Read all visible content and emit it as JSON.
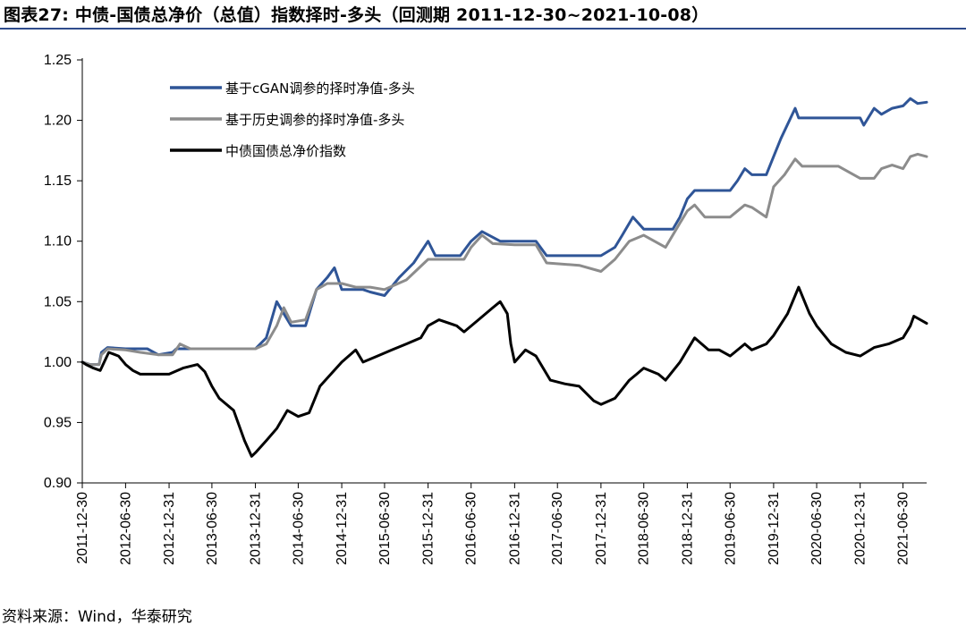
{
  "title": "图表27:  中债-国债总净价（总值）指数择时-多头（回测期 2011-12-30~2021-10-08）",
  "source": "资料来源：Wind，华泰研究",
  "chart_data": {
    "type": "line",
    "title": "图表27:  中债-国债总净价（总值）指数择时-多头（回测期 2011-12-30~2021-10-08）",
    "xlabel": "",
    "ylabel": "",
    "ylim": [
      0.9,
      1.25
    ],
    "yticks": [
      0.9,
      0.95,
      1.0,
      1.05,
      1.1,
      1.15,
      1.2,
      1.25
    ],
    "ytick_labels": [
      "0.90",
      "0.95",
      "1.00",
      "1.05",
      "1.10",
      "1.15",
      "1.20",
      "1.25"
    ],
    "xlim": [
      "2011-12-30",
      "2021-10-08"
    ],
    "xtick_labels": [
      "2011-12-30",
      "2012-06-30",
      "2012-12-31",
      "2013-06-30",
      "2013-12-31",
      "2014-06-30",
      "2014-12-31",
      "2015-06-30",
      "2015-12-31",
      "2016-06-30",
      "2016-12-31",
      "2017-06-30",
      "2017-12-31",
      "2018-06-30",
      "2018-12-31",
      "2019-06-30",
      "2019-12-31",
      "2020-06-30",
      "2020-12-31",
      "2021-06-30"
    ],
    "grid": false,
    "legend_position": "top-left",
    "series": [
      {
        "name": "基于cGAN调参的择时净值-多头",
        "color": "#2f5597",
        "points": [
          [
            "2011-12-30",
            1.0
          ],
          [
            "2012-01-31",
            0.998
          ],
          [
            "2012-03-10",
            0.998
          ],
          [
            "2012-03-20",
            1.008
          ],
          [
            "2012-04-15",
            1.012
          ],
          [
            "2012-06-30",
            1.011
          ],
          [
            "2012-09-30",
            1.011
          ],
          [
            "2012-11-15",
            1.006
          ],
          [
            "2013-01-15",
            1.008
          ],
          [
            "2013-01-31",
            1.011
          ],
          [
            "2013-06-30",
            1.011
          ],
          [
            "2013-12-31",
            1.011
          ],
          [
            "2014-02-15",
            1.02
          ],
          [
            "2014-03-31",
            1.05
          ],
          [
            "2014-04-30",
            1.04
          ],
          [
            "2014-05-31",
            1.03
          ],
          [
            "2014-07-31",
            1.03
          ],
          [
            "2014-09-15",
            1.06
          ],
          [
            "2014-10-31",
            1.07
          ],
          [
            "2014-11-30",
            1.078
          ],
          [
            "2014-12-31",
            1.06
          ],
          [
            "2015-03-31",
            1.06
          ],
          [
            "2015-04-30",
            1.058
          ],
          [
            "2015-06-30",
            1.055
          ],
          [
            "2015-08-31",
            1.07
          ],
          [
            "2015-10-31",
            1.082
          ],
          [
            "2015-12-31",
            1.1
          ],
          [
            "2016-01-31",
            1.088
          ],
          [
            "2016-03-31",
            1.088
          ],
          [
            "2016-05-15",
            1.088
          ],
          [
            "2016-06-30",
            1.1
          ],
          [
            "2016-08-15",
            1.108
          ],
          [
            "2016-10-31",
            1.1
          ],
          [
            "2016-12-31",
            1.1
          ],
          [
            "2017-03-31",
            1.1
          ],
          [
            "2017-05-15",
            1.088
          ],
          [
            "2017-12-31",
            1.088
          ],
          [
            "2018-02-28",
            1.095
          ],
          [
            "2018-03-31",
            1.105
          ],
          [
            "2018-05-15",
            1.12
          ],
          [
            "2018-06-30",
            1.11
          ],
          [
            "2018-10-31",
            1.11
          ],
          [
            "2018-11-30",
            1.12
          ],
          [
            "2018-12-31",
            1.135
          ],
          [
            "2019-01-31",
            1.142
          ],
          [
            "2019-06-30",
            1.142
          ],
          [
            "2019-07-31",
            1.15
          ],
          [
            "2019-08-31",
            1.16
          ],
          [
            "2019-09-30",
            1.155
          ],
          [
            "2019-11-30",
            1.155
          ],
          [
            "2019-12-31",
            1.17
          ],
          [
            "2020-01-31",
            1.185
          ],
          [
            "2020-03-31",
            1.21
          ],
          [
            "2020-04-15",
            1.202
          ],
          [
            "2020-06-30",
            1.202
          ],
          [
            "2020-12-31",
            1.202
          ],
          [
            "2021-01-15",
            1.196
          ],
          [
            "2021-02-28",
            1.21
          ],
          [
            "2021-03-31",
            1.205
          ],
          [
            "2021-05-15",
            1.21
          ],
          [
            "2021-06-30",
            1.212
          ],
          [
            "2021-07-31",
            1.218
          ],
          [
            "2021-08-31",
            1.214
          ],
          [
            "2021-10-08",
            1.215
          ]
        ]
      },
      {
        "name": "基于历史调参的择时净值-多头",
        "color": "#8c8c8c",
        "points": [
          [
            "2011-12-30",
            1.0
          ],
          [
            "2012-01-31",
            0.998
          ],
          [
            "2012-03-10",
            0.998
          ],
          [
            "2012-03-20",
            1.006
          ],
          [
            "2012-04-15",
            1.011
          ],
          [
            "2012-06-30",
            1.01
          ],
          [
            "2012-08-31",
            1.008
          ],
          [
            "2012-11-15",
            1.006
          ],
          [
            "2013-01-15",
            1.006
          ],
          [
            "2013-02-15",
            1.015
          ],
          [
            "2013-03-31",
            1.011
          ],
          [
            "2013-06-30",
            1.011
          ],
          [
            "2013-12-31",
            1.011
          ],
          [
            "2014-02-15",
            1.015
          ],
          [
            "2014-03-31",
            1.03
          ],
          [
            "2014-04-30",
            1.045
          ],
          [
            "2014-05-31",
            1.033
          ],
          [
            "2014-07-31",
            1.035
          ],
          [
            "2014-09-15",
            1.06
          ],
          [
            "2014-10-31",
            1.065
          ],
          [
            "2014-12-31",
            1.065
          ],
          [
            "2015-02-28",
            1.062
          ],
          [
            "2015-04-30",
            1.062
          ],
          [
            "2015-06-30",
            1.06
          ],
          [
            "2015-09-30",
            1.068
          ],
          [
            "2015-12-31",
            1.085
          ],
          [
            "2016-03-31",
            1.085
          ],
          [
            "2016-05-31",
            1.085
          ],
          [
            "2016-06-30",
            1.095
          ],
          [
            "2016-08-15",
            1.105
          ],
          [
            "2016-09-30",
            1.098
          ],
          [
            "2016-12-31",
            1.097
          ],
          [
            "2017-03-31",
            1.097
          ],
          [
            "2017-05-15",
            1.082
          ],
          [
            "2017-09-30",
            1.08
          ],
          [
            "2017-12-31",
            1.075
          ],
          [
            "2018-02-28",
            1.085
          ],
          [
            "2018-04-30",
            1.1
          ],
          [
            "2018-06-30",
            1.105
          ],
          [
            "2018-09-30",
            1.095
          ],
          [
            "2018-11-30",
            1.115
          ],
          [
            "2018-12-31",
            1.125
          ],
          [
            "2019-01-31",
            1.13
          ],
          [
            "2019-03-15",
            1.12
          ],
          [
            "2019-06-30",
            1.12
          ],
          [
            "2019-08-31",
            1.13
          ],
          [
            "2019-09-30",
            1.128
          ],
          [
            "2019-11-30",
            1.12
          ],
          [
            "2019-12-31",
            1.145
          ],
          [
            "2020-02-15",
            1.155
          ],
          [
            "2020-03-31",
            1.168
          ],
          [
            "2020-04-30",
            1.162
          ],
          [
            "2020-06-30",
            1.162
          ],
          [
            "2020-09-30",
            1.162
          ],
          [
            "2020-12-31",
            1.152
          ],
          [
            "2021-02-28",
            1.152
          ],
          [
            "2021-03-31",
            1.16
          ],
          [
            "2021-05-15",
            1.163
          ],
          [
            "2021-06-30",
            1.16
          ],
          [
            "2021-07-31",
            1.17
          ],
          [
            "2021-08-31",
            1.172
          ],
          [
            "2021-10-08",
            1.17
          ]
        ]
      },
      {
        "name": "中债国债总净价指数",
        "color": "#000000",
        "points": [
          [
            "2011-12-30",
            1.0
          ],
          [
            "2012-01-15",
            0.998
          ],
          [
            "2012-02-15",
            0.995
          ],
          [
            "2012-03-15",
            0.993
          ],
          [
            "2012-04-20",
            1.008
          ],
          [
            "2012-05-31",
            1.005
          ],
          [
            "2012-06-30",
            0.998
          ],
          [
            "2012-07-31",
            0.993
          ],
          [
            "2012-08-31",
            0.99
          ],
          [
            "2012-10-31",
            0.99
          ],
          [
            "2012-12-31",
            0.99
          ],
          [
            "2013-02-28",
            0.995
          ],
          [
            "2013-04-30",
            0.998
          ],
          [
            "2013-05-31",
            0.992
          ],
          [
            "2013-06-30",
            0.98
          ],
          [
            "2013-07-31",
            0.97
          ],
          [
            "2013-09-30",
            0.96
          ],
          [
            "2013-11-15",
            0.935
          ],
          [
            "2013-12-15",
            0.922
          ],
          [
            "2013-12-31",
            0.925
          ],
          [
            "2014-02-15",
            0.935
          ],
          [
            "2014-03-31",
            0.945
          ],
          [
            "2014-05-15",
            0.96
          ],
          [
            "2014-06-30",
            0.955
          ],
          [
            "2014-08-15",
            0.958
          ],
          [
            "2014-09-30",
            0.98
          ],
          [
            "2014-11-15",
            0.99
          ],
          [
            "2014-12-31",
            1.0
          ],
          [
            "2015-02-28",
            1.01
          ],
          [
            "2015-03-31",
            1.0
          ],
          [
            "2015-05-31",
            1.005
          ],
          [
            "2015-07-31",
            1.01
          ],
          [
            "2015-09-30",
            1.015
          ],
          [
            "2015-11-30",
            1.02
          ],
          [
            "2015-12-31",
            1.03
          ],
          [
            "2016-02-15",
            1.035
          ],
          [
            "2016-04-30",
            1.03
          ],
          [
            "2016-05-31",
            1.025
          ],
          [
            "2016-07-31",
            1.035
          ],
          [
            "2016-09-30",
            1.045
          ],
          [
            "2016-10-31",
            1.05
          ],
          [
            "2016-11-30",
            1.04
          ],
          [
            "2016-12-15",
            1.015
          ],
          [
            "2016-12-31",
            1.0
          ],
          [
            "2017-02-15",
            1.01
          ],
          [
            "2017-03-31",
            1.005
          ],
          [
            "2017-05-31",
            0.985
          ],
          [
            "2017-07-31",
            0.982
          ],
          [
            "2017-09-30",
            0.98
          ],
          [
            "2017-11-30",
            0.968
          ],
          [
            "2017-12-31",
            0.965
          ],
          [
            "2018-02-28",
            0.97
          ],
          [
            "2018-04-30",
            0.985
          ],
          [
            "2018-05-31",
            0.99
          ],
          [
            "2018-06-30",
            0.995
          ],
          [
            "2018-08-31",
            0.99
          ],
          [
            "2018-09-30",
            0.985
          ],
          [
            "2018-11-30",
            1.0
          ],
          [
            "2018-12-31",
            1.01
          ],
          [
            "2019-01-31",
            1.02
          ],
          [
            "2019-03-31",
            1.01
          ],
          [
            "2019-05-15",
            1.01
          ],
          [
            "2019-06-30",
            1.005
          ],
          [
            "2019-08-31",
            1.015
          ],
          [
            "2019-09-30",
            1.01
          ],
          [
            "2019-11-30",
            1.015
          ],
          [
            "2019-12-31",
            1.022
          ],
          [
            "2020-02-28",
            1.04
          ],
          [
            "2020-04-15",
            1.062
          ],
          [
            "2020-05-31",
            1.04
          ],
          [
            "2020-06-30",
            1.03
          ],
          [
            "2020-08-31",
            1.015
          ],
          [
            "2020-10-31",
            1.008
          ],
          [
            "2020-12-31",
            1.005
          ],
          [
            "2021-02-28",
            1.012
          ],
          [
            "2021-04-30",
            1.015
          ],
          [
            "2021-06-30",
            1.02
          ],
          [
            "2021-07-31",
            1.03
          ],
          [
            "2021-08-15",
            1.038
          ],
          [
            "2021-10-08",
            1.032
          ]
        ]
      }
    ]
  }
}
